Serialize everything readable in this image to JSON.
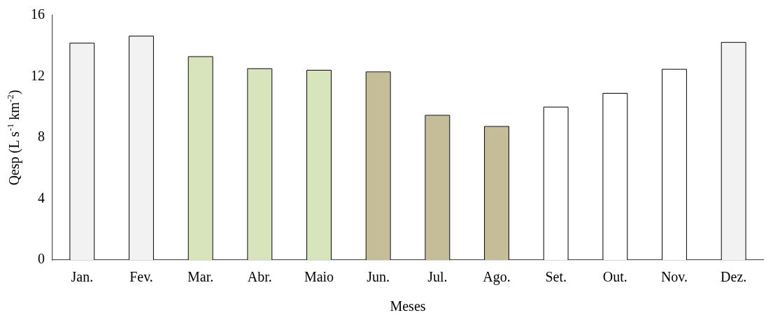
{
  "chart_data": {
    "type": "bar",
    "categories": [
      "Jan.",
      "Fev.",
      "Mar.",
      "Abr.",
      "Maio",
      "Jun.",
      "Jul.",
      "Ago.",
      "Set.",
      "Out.",
      "Nov.",
      "Dez."
    ],
    "values": [
      14.16,
      14.62,
      13.28,
      12.49,
      12.39,
      12.28,
      9.44,
      8.71,
      9.98,
      10.88,
      12.45,
      14.21
    ],
    "colors": [
      "#f2f2f2",
      "#f2f2f2",
      "#d8e4bc",
      "#d8e4bc",
      "#d8e4bc",
      "#c4bd97",
      "#c4bd97",
      "#c4bd97",
      "#ffffff",
      "#ffffff",
      "#ffffff",
      "#f2f2f2"
    ],
    "xlabel": "Meses",
    "ylabel": "Qesp (L s$^{-1}$ km$^{-2}$)",
    "ylim": [
      0,
      16
    ],
    "yticks": [
      0,
      4,
      8,
      12,
      16
    ],
    "grid": false,
    "legend": false
  }
}
